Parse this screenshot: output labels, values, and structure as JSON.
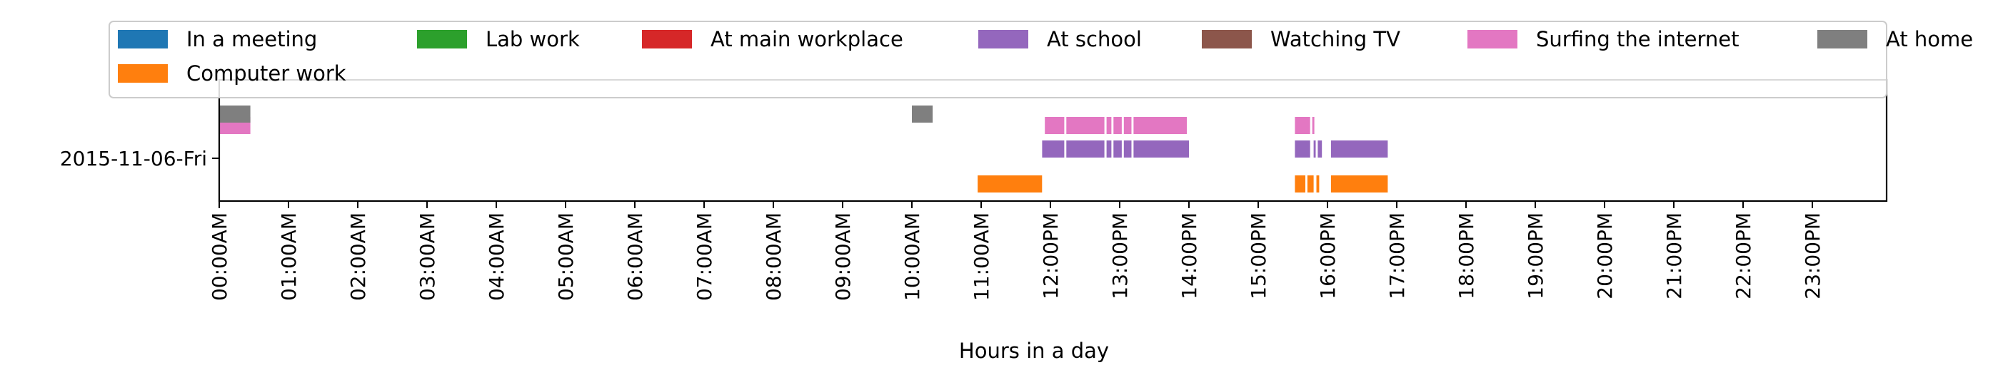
{
  "chart_data": {
    "type": "bar",
    "title": "",
    "xlabel": "Hours in a day",
    "ylabel": "",
    "xlim": [
      0,
      24
    ],
    "categories": [
      "2015-11-06-Fri"
    ],
    "x_tick_labels": [
      "00:00AM",
      "01:00AM",
      "02:00AM",
      "03:00AM",
      "04:00AM",
      "05:00AM",
      "06:00AM",
      "07:00AM",
      "08:00AM",
      "09:00AM",
      "10:00AM",
      "11:00AM",
      "12:00PM",
      "13:00PM",
      "14:00PM",
      "15:00PM",
      "16:00PM",
      "17:00PM",
      "18:00PM",
      "19:00PM",
      "20:00PM",
      "21:00PM",
      "22:00PM",
      "23:00PM"
    ],
    "legend_position": "top",
    "grid": false,
    "series": [
      {
        "name": "In a meeting",
        "color": "#1f77b4",
        "lane": 0,
        "intervals": []
      },
      {
        "name": "Computer work",
        "color": "#ff7f0e",
        "lane": 1,
        "intervals": [
          [
            10.95,
            11.88
          ],
          [
            15.53,
            15.68
          ],
          [
            15.71,
            15.8
          ],
          [
            15.84,
            15.88
          ],
          [
            16.05,
            16.87
          ]
        ]
      },
      {
        "name": "Lab work",
        "color": "#2ca02c",
        "lane": 2,
        "intervals": []
      },
      {
        "name": "At main workplace",
        "color": "#d62728",
        "lane": 3,
        "intervals": []
      },
      {
        "name": "At school",
        "color": "#9467bd",
        "lane": 4,
        "intervals": [
          [
            11.88,
            12.2
          ],
          [
            12.23,
            12.78
          ],
          [
            12.81,
            12.88
          ],
          [
            12.91,
            13.03
          ],
          [
            13.06,
            13.17
          ],
          [
            13.2,
            14.0
          ],
          [
            15.53,
            15.75
          ],
          [
            15.8,
            15.83
          ],
          [
            15.86,
            15.92
          ],
          [
            16.05,
            16.87
          ]
        ]
      },
      {
        "name": "Watching TV",
        "color": "#8c564b",
        "lane": 5,
        "intervals": []
      },
      {
        "name": "Surfing the internet",
        "color": "#e377c2",
        "lane": 6,
        "intervals": [
          [
            0.0,
            0.45
          ],
          [
            11.92,
            12.2
          ],
          [
            12.23,
            12.78
          ],
          [
            12.81,
            12.88
          ],
          [
            12.91,
            13.03
          ],
          [
            13.06,
            13.17
          ],
          [
            13.2,
            13.97
          ],
          [
            15.53,
            15.75
          ],
          [
            15.78,
            15.81
          ]
        ]
      },
      {
        "name": "At home",
        "color": "#7f7f7f",
        "lane": 7,
        "intervals": [
          [
            0.0,
            0.45
          ],
          [
            10.0,
            10.3
          ]
        ]
      }
    ]
  }
}
